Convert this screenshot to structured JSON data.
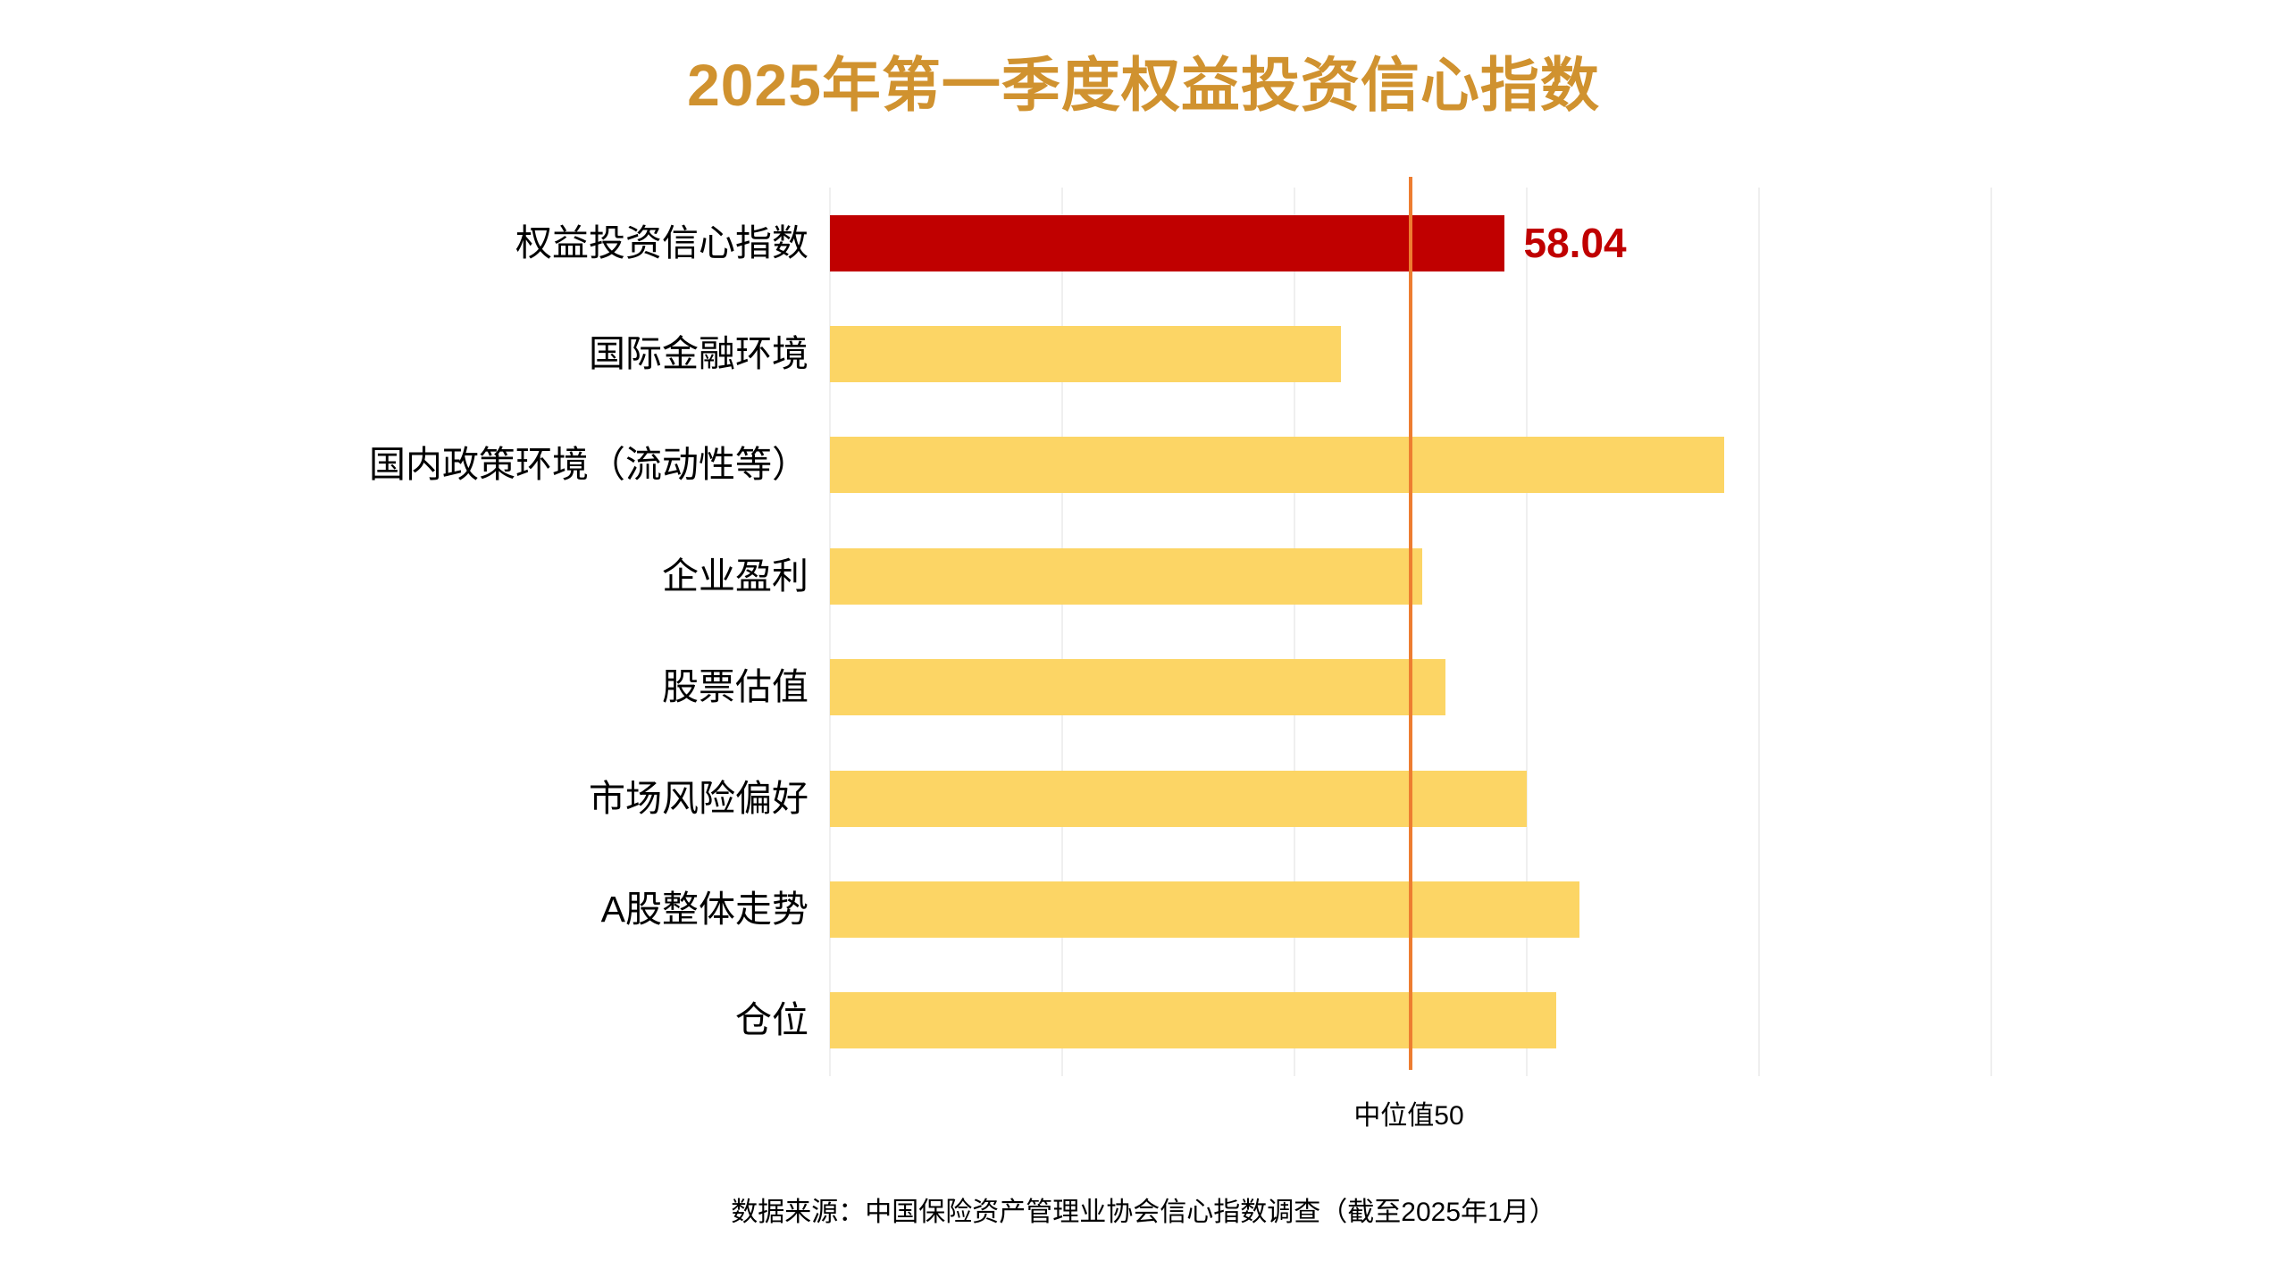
{
  "title": "2025年第一季度权益投资信心指数",
  "source_note": "数据来源：中国保险资产管理业协会信心指数调查（截至2025年1月）",
  "colors": {
    "title": "#d0922f",
    "bar_yellow": "#fcd565",
    "bar_red": "#c00000",
    "value_label": "#c00000",
    "median_line": "#ed7d31",
    "gridline": "#efefef",
    "text": "#000000"
  },
  "chart_data": {
    "type": "bar",
    "orientation": "horizontal",
    "title": "2025年第一季度权益投资信心指数",
    "categories": [
      "权益投资信心指数",
      "国际金融环境",
      "国内政策环境（流动性等）",
      "企业盈利",
      "股票估值",
      "市场风险偏好",
      "A股整体走势",
      "仓位"
    ],
    "values": [
      58.04,
      44,
      77,
      51,
      53,
      60,
      64.5,
      62.5
    ],
    "value_labels": [
      "58.04",
      "",
      "",
      "",
      "",
      "",
      "",
      ""
    ],
    "bar_colors": [
      "#c00000",
      "#fcd565",
      "#fcd565",
      "#fcd565",
      "#fcd565",
      "#fcd565",
      "#fcd565",
      "#fcd565"
    ],
    "xlim": [
      0,
      100
    ],
    "gridline_interval": 20,
    "grid": "vertical-only",
    "legend": "none",
    "reference_line": {
      "value": 50,
      "label": "中位值50",
      "color": "#ed7d31"
    },
    "source": "数据来源：中国保险资产管理业协会信心指数调查（截至2025年1月）",
    "note": "values other than 58.04 are estimated from bar lengths; only the first bar is labeled"
  }
}
